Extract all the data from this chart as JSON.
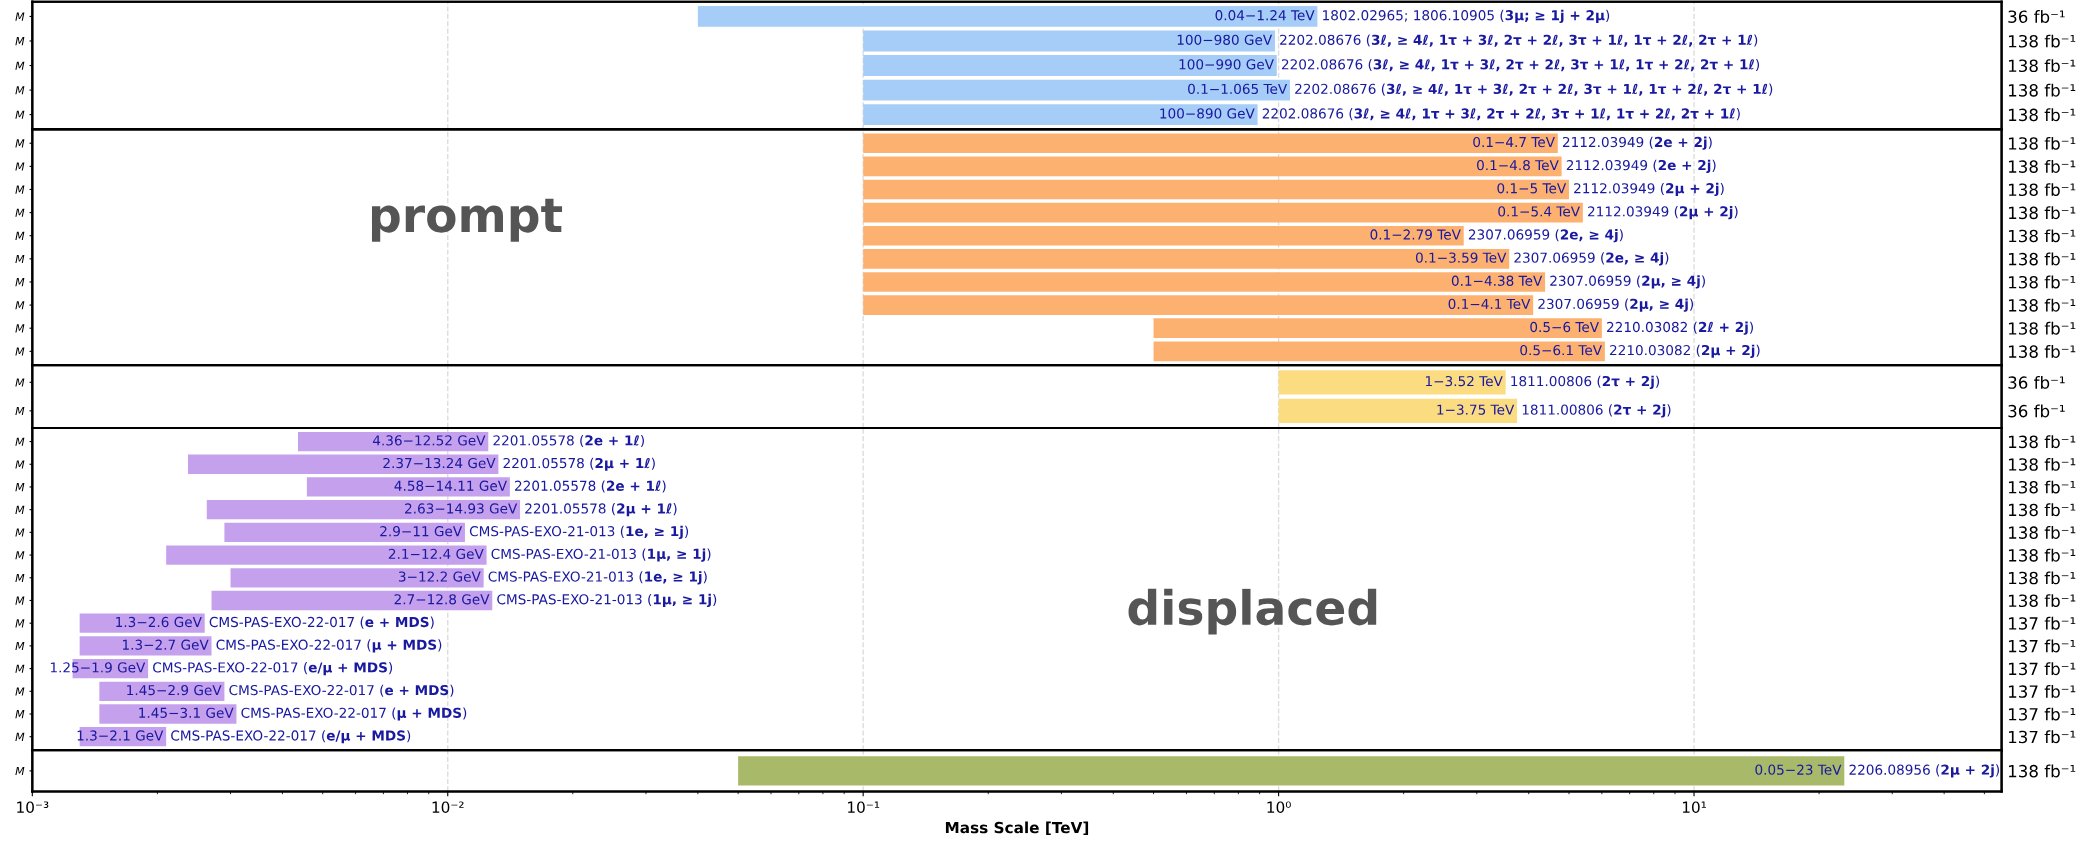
{
  "chart_data": [
    {
      "type": "bar",
      "orientation": "horizontal",
      "log": "x",
      "grid": "x",
      "tick_labels": "y",
      "color": "#a5cdf8",
      "xlim": [
        0.001,
        55
      ],
      "xticks": [
        0.001,
        0.01,
        0.1,
        1,
        10
      ],
      "categories": [
        "M",
        "M",
        "M",
        "M",
        "M"
      ],
      "y2_categories": [
        "36 fb⁻¹",
        "138 fb⁻¹",
        "138 fb⁻¹",
        "138 fb⁻¹",
        "138 fb⁻¹"
      ],
      "base": [
        0.04,
        0.1,
        0.1,
        0.1,
        0.1
      ],
      "values": [
        1.2,
        0.88,
        0.89,
        0.965,
        0.79
      ],
      "annotations": [
        "0.04−1.24 TeV",
        "100−980 GeV",
        "100−990 GeV",
        "0.1−1.065 TeV",
        "100−890 GeV",
        "1802.02965; 1806.10905 (3μ; ≥ 1j + 2μ)",
        "2202.08676 (3ℓ, ≥ 4ℓ, 1τ + 3ℓ, 2τ + 2ℓ, 3τ + 1ℓ, 1τ + 2ℓ, 2τ + 1ℓ)",
        "2202.08676 (3ℓ, ≥ 4ℓ, 1τ + 3ℓ, 2τ + 2ℓ, 3τ + 1ℓ, 1τ + 2ℓ, 2τ + 1ℓ)",
        "2202.08676 (3ℓ, ≥ 4ℓ, 1τ + 3ℓ, 2τ + 2ℓ, 3τ + 1ℓ, 1τ + 2ℓ, 2τ + 1ℓ)",
        "2202.08676 (3ℓ, ≥ 4ℓ, 1τ + 3ℓ, 2τ + 2ℓ, 3τ + 1ℓ, 1τ + 2ℓ, 2τ + 1ℓ)"
      ]
    },
    {
      "type": "bar",
      "orientation": "horizontal",
      "log": "x",
      "grid": "x",
      "tick_labels": "y",
      "color": "#fdb171",
      "xlim": [
        0.001,
        55
      ],
      "xticks": [
        0.001,
        0.01,
        0.1,
        1,
        10
      ],
      "categories": [
        "M",
        "M",
        "M",
        "M",
        "M",
        "M",
        "M",
        "M",
        "M",
        "M"
      ],
      "y2_categories": [
        "138 fb⁻¹",
        "138 fb⁻¹",
        "138 fb⁻¹",
        "138 fb⁻¹",
        "138 fb⁻¹",
        "138 fb⁻¹",
        "138 fb⁻¹",
        "138 fb⁻¹",
        "138 fb⁻¹",
        "138 fb⁻¹"
      ],
      "base": [
        0.1,
        0.1,
        0.1,
        0.1,
        0.1,
        0.1,
        0.1,
        0.1,
        0.5,
        0.5
      ],
      "values": [
        4.6,
        4.7,
        4.9,
        5.3,
        2.69,
        3.49,
        4.28,
        4.0,
        5.5,
        5.6
      ],
      "annotations": [
        "0.1−4.7 TeV",
        "0.1−4.8 TeV",
        "0.1−5 TeV",
        "0.1−5.4 TeV",
        "0.1−2.79 TeV",
        "0.1−3.59 TeV",
        "0.1−4.38 TeV",
        "0.1−4.1 TeV",
        "0.5−6 TeV",
        "0.5−6.1 TeV",
        "2112.03949 (2e + 2j)",
        "2112.03949 (2e + 2j)",
        "2112.03949 (2μ + 2j)",
        "2112.03949 (2μ + 2j)",
        "2307.06959 (2e, ≥ 4j)",
        "2307.06959 (2e, ≥ 4j)",
        "2307.06959 (2μ, ≥ 4j)",
        "2307.06959 (2μ, ≥ 4j)",
        "2210.03082 (2ℓ + 2j)",
        "2210.03082 (2μ + 2j)",
        "prompt"
      ]
    },
    {
      "type": "bar",
      "orientation": "horizontal",
      "log": "x",
      "grid": "x",
      "tick_labels": "y",
      "color": "#fbdc80",
      "xlim": [
        0.001,
        55
      ],
      "xticks": [
        0.001,
        0.01,
        0.1,
        1,
        10
      ],
      "categories": [
        "M",
        "M"
      ],
      "y2_categories": [
        "36 fb⁻¹",
        "36 fb⁻¹"
      ],
      "base": [
        1,
        1
      ],
      "values": [
        2.52,
        2.75
      ],
      "annotations": [
        "1−3.52 TeV",
        "1−3.75 TeV",
        "1811.00806 (2τ + 2j)",
        "1811.00806 (2τ + 2j)"
      ]
    },
    {
      "type": "bar",
      "orientation": "horizontal",
      "log": "x",
      "grid": "x",
      "tick_labels": "y",
      "color": "#c5a0ed",
      "xlim": [
        0.001,
        55
      ],
      "xticks": [
        0.001,
        0.01,
        0.1,
        1,
        10
      ],
      "categories": [
        "M",
        "M",
        "M",
        "M",
        "M",
        "M",
        "M",
        "M",
        "M",
        "M",
        "M",
        "M",
        "M",
        "M"
      ],
      "y2_categories": [
        "138 fb⁻¹",
        "138 fb⁻¹",
        "138 fb⁻¹",
        "138 fb⁻¹",
        "138 fb⁻¹",
        "138 fb⁻¹",
        "138 fb⁻¹",
        "138 fb⁻¹",
        "137 fb⁻¹",
        "137 fb⁻¹",
        "137 fb⁻¹",
        "137 fb⁻¹",
        "137 fb⁻¹",
        "137 fb⁻¹"
      ],
      "base": [
        0.00436,
        0.00237,
        0.00458,
        0.00263,
        0.0029,
        0.0021,
        0.003,
        0.0027,
        0.0013,
        0.0013,
        0.00125,
        0.00145,
        0.00145,
        0.0013
      ],
      "values": [
        0.00816,
        0.01087,
        0.00953,
        0.0123,
        0.0081,
        0.0103,
        0.0092,
        0.0101,
        0.0013,
        0.0014,
        0.00065,
        0.00145,
        0.00165,
        0.0008
      ],
      "annotations": [
        "4.36−12.52 GeV",
        "2.37−13.24 GeV",
        "4.58−14.11 GeV",
        "2.63−14.93 GeV",
        "2.9−11 GeV",
        "2.1−12.4 GeV",
        "3−12.2 GeV",
        "2.7−12.8 GeV",
        "1.3−2.6 GeV",
        "1.3−2.7 GeV",
        "1.25−1.9 GeV",
        "1.45−2.9 GeV",
        "1.45−3.1 GeV",
        "1.3−2.1 GeV",
        "2201.05578 (2e + 1ℓ)",
        "2201.05578 (2μ + 1ℓ)",
        "2201.05578 (2e + 1ℓ)",
        "2201.05578 (2μ + 1ℓ)",
        "CMS-PAS-EXO-21-013 (1e, ≥ 1j)",
        "CMS-PAS-EXO-21-013 (1μ, ≥ 1j)",
        "CMS-PAS-EXO-21-013 (1e, ≥ 1j)",
        "CMS-PAS-EXO-21-013 (1μ, ≥ 1j)",
        "CMS-PAS-EXO-22-017 (e + MDS)",
        "CMS-PAS-EXO-22-017 (μ + MDS)",
        "CMS-PAS-EXO-22-017 (e/μ + MDS)",
        "CMS-PAS-EXO-22-017 (e + MDS)",
        "CMS-PAS-EXO-22-017 (μ + MDS)",
        "CMS-PAS-EXO-22-017 (e/μ + MDS)",
        "displaced"
      ]
    },
    {
      "type": "bar",
      "orientation": "horizontal",
      "log": "x",
      "grid": "x",
      "color": "#a8ba6a",
      "xlabel": "Mass Scale [TeV]",
      "xlim": [
        0.001,
        55
      ],
      "xticks": [
        {
          "value": 0.001,
          "label": "10⁻³"
        },
        {
          "value": 0.01,
          "label": "10⁻²"
        },
        {
          "value": 0.1,
          "label": "10⁻¹"
        },
        {
          "value": 1,
          "label": "10⁰"
        },
        {
          "value": 10,
          "label": "10¹"
        }
      ],
      "categories": [
        "M"
      ],
      "y2_categories": [
        "138 fb⁻¹"
      ],
      "base": [
        0.05
      ],
      "values": [
        22.95
      ],
      "annotations": [
        "0.05−23 TeV",
        "2206.08956 (2μ + 2j)"
      ]
    }
  ]
}
